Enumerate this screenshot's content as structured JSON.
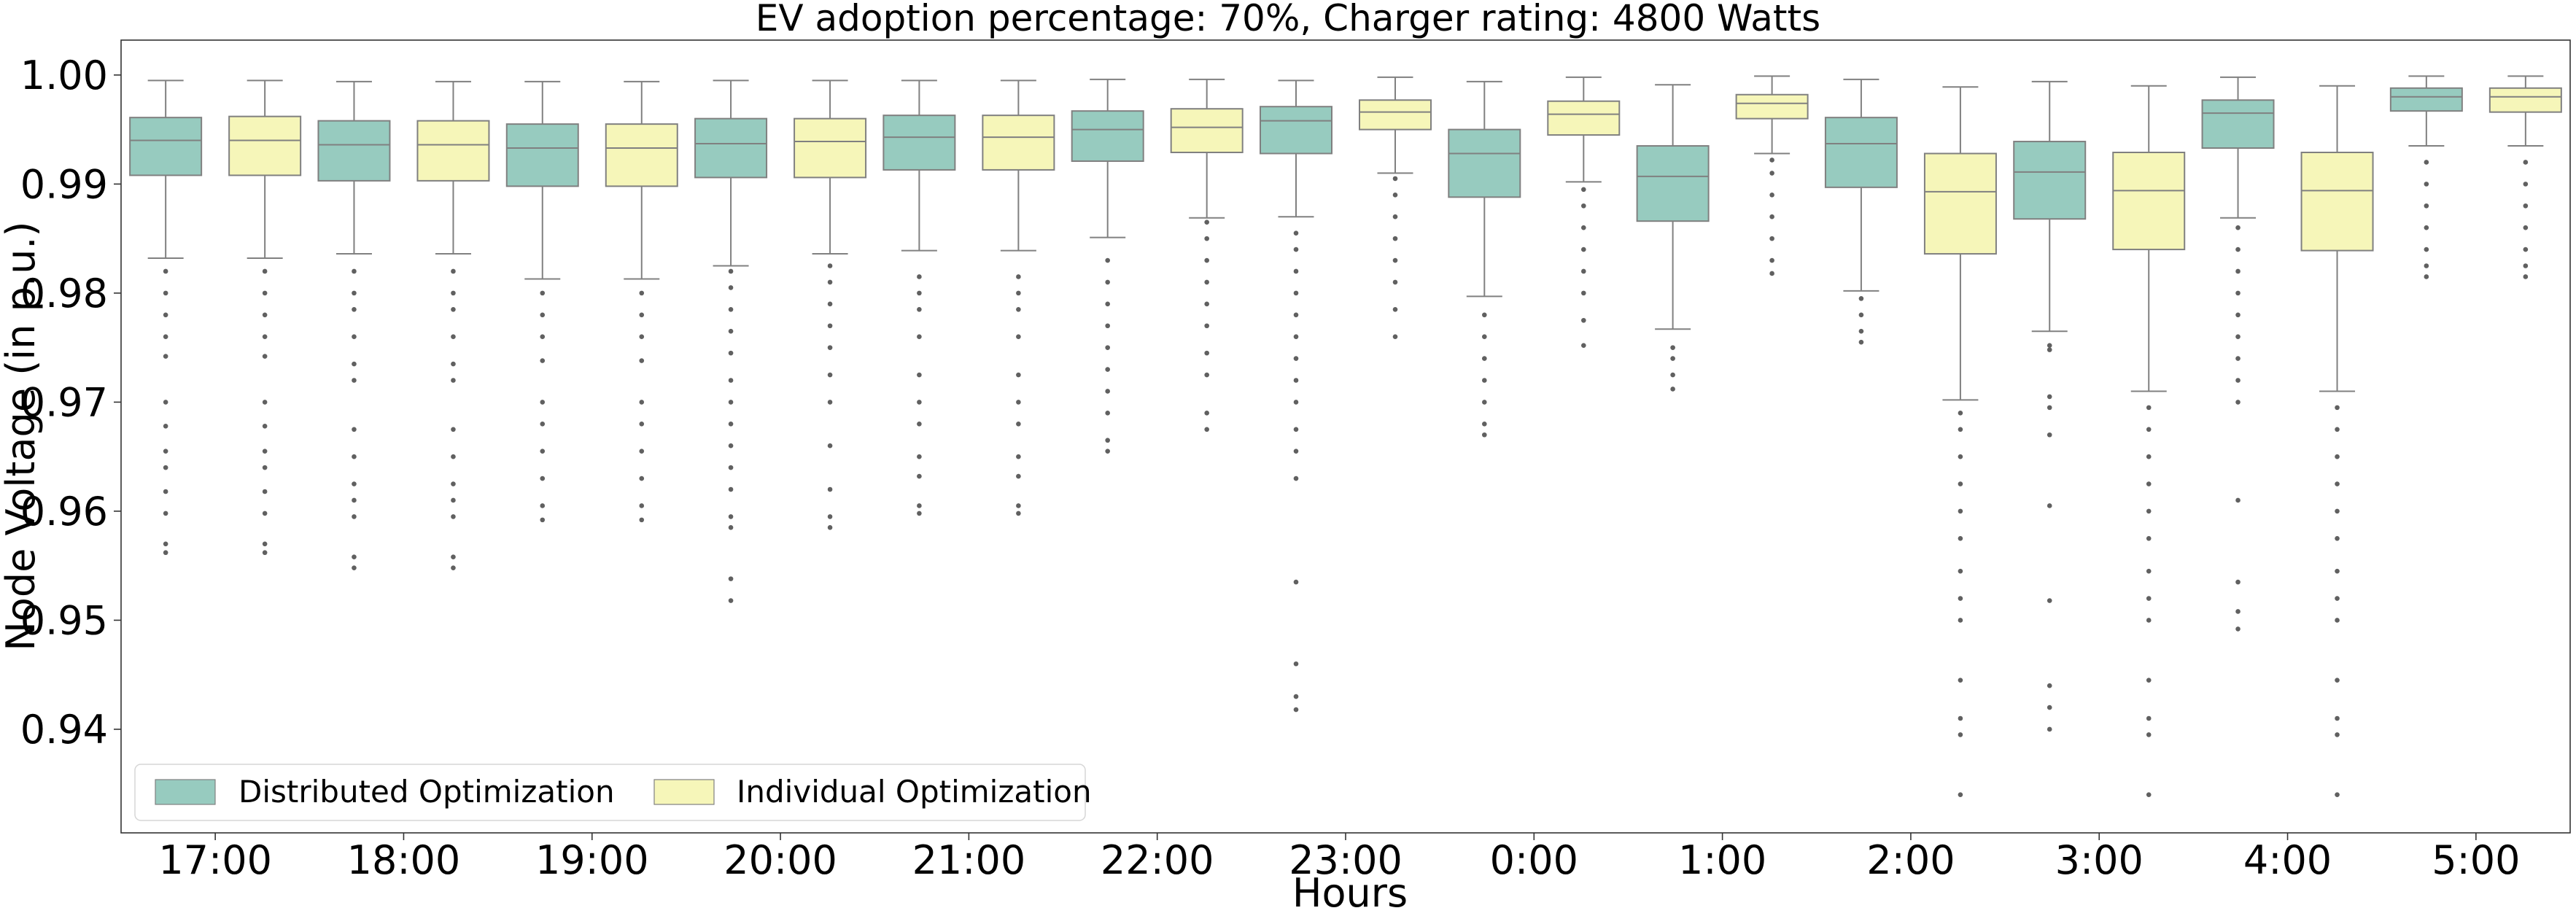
{
  "chart_data": {
    "type": "box",
    "title": "EV adoption percentage: 70%, Charger rating: 4800 Watts",
    "xlabel": "Hours",
    "ylabel": "Node Voltage (in p.u.)",
    "ylim": [
      0.9305,
      1.0032
    ],
    "yticks": [
      0.94,
      0.95,
      0.96,
      0.97,
      0.98,
      0.99,
      1.0
    ],
    "ytick_labels": [
      "0.94",
      "0.95",
      "0.96",
      "0.97",
      "0.98",
      "0.99",
      "1.00"
    ],
    "grid": false,
    "legend_position": "lower-left",
    "categories": [
      "17:00",
      "18:00",
      "19:00",
      "20:00",
      "21:00",
      "22:00",
      "23:00",
      "0:00",
      "1:00",
      "2:00",
      "3:00",
      "4:00",
      "5:00"
    ],
    "colors": {
      "distributed": "#97cbbf",
      "individual": "#f6f6b9",
      "outline": "#808080",
      "outlier": "#606060"
    },
    "series": [
      {
        "name": "Distributed Optimization",
        "boxes": [
          {
            "whislo": 0.9832,
            "q1": 0.9908,
            "med": 0.994,
            "q3": 0.9961,
            "whishi": 0.9995,
            "fliers": [
              0.9562,
              0.957,
              0.9598,
              0.9618,
              0.964,
              0.9655,
              0.9678,
              0.97,
              0.9742,
              0.976,
              0.978,
              0.98,
              0.982
            ]
          },
          {
            "whislo": 0.9836,
            "q1": 0.9903,
            "med": 0.9936,
            "q3": 0.9958,
            "whishi": 0.9994,
            "fliers": [
              0.9548,
              0.9558,
              0.9595,
              0.961,
              0.9625,
              0.965,
              0.9675,
              0.972,
              0.9735,
              0.976,
              0.9785,
              0.98,
              0.982
            ]
          },
          {
            "whislo": 0.9813,
            "q1": 0.9898,
            "med": 0.9933,
            "q3": 0.9955,
            "whishi": 0.9994,
            "fliers": [
              0.9592,
              0.9605,
              0.963,
              0.9655,
              0.968,
              0.97,
              0.9738,
              0.976,
              0.978,
              0.98
            ]
          },
          {
            "whislo": 0.9825,
            "q1": 0.9906,
            "med": 0.9937,
            "q3": 0.996,
            "whishi": 0.9995,
            "fliers": [
              0.9518,
              0.9538,
              0.9585,
              0.9595,
              0.962,
              0.964,
              0.966,
              0.968,
              0.97,
              0.972,
              0.9745,
              0.9765,
              0.9785,
              0.9805,
              0.982
            ]
          },
          {
            "whislo": 0.9839,
            "q1": 0.9913,
            "med": 0.9943,
            "q3": 0.9963,
            "whishi": 0.9995,
            "fliers": [
              0.9598,
              0.9605,
              0.9632,
              0.965,
              0.968,
              0.97,
              0.9725,
              0.976,
              0.9785,
              0.98,
              0.9815
            ]
          },
          {
            "whislo": 0.9851,
            "q1": 0.9921,
            "med": 0.995,
            "q3": 0.9967,
            "whishi": 0.9996,
            "fliers": [
              0.9655,
              0.9665,
              0.969,
              0.971,
              0.973,
              0.975,
              0.977,
              0.979,
              0.981,
              0.983
            ]
          },
          {
            "whislo": 0.987,
            "q1": 0.9928,
            "med": 0.9958,
            "q3": 0.9971,
            "whishi": 0.9995,
            "fliers": [
              0.9418,
              0.943,
              0.946,
              0.9535,
              0.963,
              0.9655,
              0.9675,
              0.97,
              0.972,
              0.974,
              0.976,
              0.978,
              0.98,
              0.982,
              0.984,
              0.9855
            ]
          },
          {
            "whislo": 0.9797,
            "q1": 0.9888,
            "med": 0.9928,
            "q3": 0.995,
            "whishi": 0.9994,
            "fliers": [
              0.967,
              0.968,
              0.97,
              0.972,
              0.974,
              0.976,
              0.978
            ]
          },
          {
            "whislo": 0.9767,
            "q1": 0.9866,
            "med": 0.9907,
            "q3": 0.9935,
            "whishi": 0.9991,
            "fliers": [
              0.9712,
              0.9725,
              0.974,
              0.975
            ]
          },
          {
            "whislo": 0.9802,
            "q1": 0.9897,
            "med": 0.9937,
            "q3": 0.9961,
            "whishi": 0.9996,
            "fliers": [
              0.9755,
              0.9765,
              0.978,
              0.9795
            ]
          },
          {
            "whislo": 0.9765,
            "q1": 0.9868,
            "med": 0.9911,
            "q3": 0.9939,
            "whishi": 0.9994,
            "fliers": [
              0.94,
              0.942,
              0.944,
              0.9518,
              0.9605,
              0.967,
              0.9695,
              0.9705,
              0.9748,
              0.9752
            ]
          },
          {
            "whislo": 0.9869,
            "q1": 0.9933,
            "med": 0.9965,
            "q3": 0.9977,
            "whishi": 0.9998,
            "fliers": [
              0.9492,
              0.9508,
              0.9535,
              0.961,
              0.97,
              0.972,
              0.974,
              0.976,
              0.978,
              0.98,
              0.982,
              0.984,
              0.986
            ]
          },
          {
            "whislo": 0.9935,
            "q1": 0.9967,
            "med": 0.998,
            "q3": 0.9988,
            "whishi": 0.9999,
            "fliers": [
              0.9815,
              0.9825,
              0.984,
              0.986,
              0.988,
              0.99,
              0.992
            ]
          }
        ]
      },
      {
        "name": "Individual Optimization",
        "boxes": [
          {
            "whislo": 0.9832,
            "q1": 0.9908,
            "med": 0.994,
            "q3": 0.9962,
            "whishi": 0.9995,
            "fliers": [
              0.9562,
              0.957,
              0.9598,
              0.9618,
              0.964,
              0.9655,
              0.9678,
              0.97,
              0.9742,
              0.976,
              0.978,
              0.98,
              0.982
            ]
          },
          {
            "whislo": 0.9836,
            "q1": 0.9903,
            "med": 0.9936,
            "q3": 0.9958,
            "whishi": 0.9994,
            "fliers": [
              0.9548,
              0.9558,
              0.9595,
              0.961,
              0.9625,
              0.965,
              0.9675,
              0.972,
              0.9735,
              0.976,
              0.9785,
              0.98,
              0.982
            ]
          },
          {
            "whislo": 0.9813,
            "q1": 0.9898,
            "med": 0.9933,
            "q3": 0.9955,
            "whishi": 0.9994,
            "fliers": [
              0.9592,
              0.9605,
              0.963,
              0.9655,
              0.968,
              0.97,
              0.9738,
              0.976,
              0.978,
              0.98
            ]
          },
          {
            "whislo": 0.9836,
            "q1": 0.9906,
            "med": 0.9939,
            "q3": 0.996,
            "whishi": 0.9995,
            "fliers": [
              0.9585,
              0.9595,
              0.962,
              0.966,
              0.97,
              0.9725,
              0.975,
              0.977,
              0.979,
              0.981,
              0.9825
            ]
          },
          {
            "whislo": 0.9839,
            "q1": 0.9913,
            "med": 0.9943,
            "q3": 0.9963,
            "whishi": 0.9995,
            "fliers": [
              0.9598,
              0.9605,
              0.9632,
              0.965,
              0.968,
              0.97,
              0.9725,
              0.976,
              0.9785,
              0.98,
              0.9815
            ]
          },
          {
            "whislo": 0.9869,
            "q1": 0.9929,
            "med": 0.9952,
            "q3": 0.9969,
            "whishi": 0.9996,
            "fliers": [
              0.9675,
              0.969,
              0.9725,
              0.9745,
              0.977,
              0.979,
              0.981,
              0.983,
              0.985,
              0.9865
            ]
          },
          {
            "whislo": 0.991,
            "q1": 0.995,
            "med": 0.9966,
            "q3": 0.9977,
            "whishi": 0.9998,
            "fliers": [
              0.976,
              0.9785,
              0.981,
              0.983,
              0.985,
              0.987,
              0.989,
              0.9905
            ]
          },
          {
            "whislo": 0.9902,
            "q1": 0.9945,
            "med": 0.9964,
            "q3": 0.9976,
            "whishi": 0.9998,
            "fliers": [
              0.9752,
              0.9775,
              0.98,
              0.982,
              0.984,
              0.986,
              0.988,
              0.9895
            ]
          },
          {
            "whislo": 0.9928,
            "q1": 0.996,
            "med": 0.9974,
            "q3": 0.9982,
            "whishi": 0.9999,
            "fliers": [
              0.9818,
              0.983,
              0.985,
              0.987,
              0.989,
              0.991,
              0.9922
            ]
          },
          {
            "whislo": 0.9702,
            "q1": 0.9836,
            "med": 0.9893,
            "q3": 0.9928,
            "whishi": 0.9989,
            "fliers": [
              0.934,
              0.9395,
              0.941,
              0.9445,
              0.95,
              0.952,
              0.9545,
              0.9575,
              0.96,
              0.9625,
              0.965,
              0.9675,
              0.969
            ]
          },
          {
            "whislo": 0.971,
            "q1": 0.984,
            "med": 0.9894,
            "q3": 0.9929,
            "whishi": 0.999,
            "fliers": [
              0.934,
              0.9395,
              0.941,
              0.9445,
              0.95,
              0.952,
              0.9545,
              0.9575,
              0.96,
              0.9625,
              0.965,
              0.9675,
              0.9695
            ]
          },
          {
            "whislo": 0.971,
            "q1": 0.9839,
            "med": 0.9894,
            "q3": 0.9929,
            "whishi": 0.999,
            "fliers": [
              0.934,
              0.9395,
              0.941,
              0.9445,
              0.95,
              0.952,
              0.9545,
              0.9575,
              0.96,
              0.9625,
              0.965,
              0.9675,
              0.9695
            ]
          },
          {
            "whislo": 0.9935,
            "q1": 0.9966,
            "med": 0.998,
            "q3": 0.9988,
            "whishi": 0.9999,
            "fliers": [
              0.9815,
              0.9825,
              0.984,
              0.986,
              0.988,
              0.99,
              0.992
            ]
          }
        ]
      }
    ]
  }
}
